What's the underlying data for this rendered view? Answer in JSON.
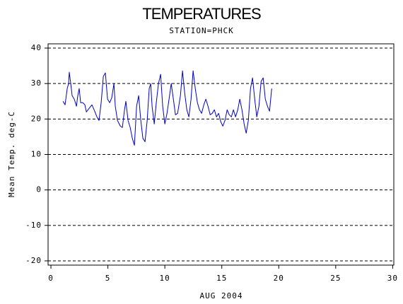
{
  "chart_data": {
    "type": "line",
    "title": "TEMPERATURES",
    "subtitle": "STATION=PHCK",
    "x_label": "AUG 2004",
    "y_label": "Mean Temp. deg-C",
    "color": "#0000cc",
    "grid": true,
    "xlim": [
      -0.25,
      30.1
    ],
    "ylim": [
      -21.2,
      41.2
    ],
    "xticks": [
      0,
      5,
      10,
      15,
      20,
      25,
      30
    ],
    "yticks": [
      -20,
      -10,
      0,
      10,
      20,
      30,
      40
    ],
    "x": [
      1.06,
      1.24,
      1.43,
      1.55,
      1.61,
      1.74,
      1.86,
      2.05,
      2.24,
      2.36,
      2.48,
      2.61,
      2.8,
      2.98,
      3.11,
      3.35,
      3.6,
      3.79,
      4.04,
      4.22,
      4.41,
      4.6,
      4.78,
      4.97,
      5.16,
      5.34,
      5.53,
      5.65,
      5.84,
      6.09,
      6.27,
      6.46,
      6.58,
      6.77,
      6.96,
      7.14,
      7.33,
      7.52,
      7.7,
      7.89,
      8.07,
      8.26,
      8.45,
      8.63,
      8.76,
      8.88,
      9.07,
      9.25,
      9.44,
      9.63,
      9.81,
      10.0,
      10.19,
      10.37,
      10.56,
      10.75,
      10.93,
      11.12,
      11.37,
      11.55,
      11.74,
      11.93,
      12.11,
      12.3,
      12.48,
      12.67,
      12.86,
      13.04,
      13.23,
      13.42,
      13.6,
      13.79,
      13.98,
      14.16,
      14.35,
      14.53,
      14.72,
      14.91,
      15.09,
      15.28,
      15.47,
      15.65,
      15.84,
      16.02,
      16.21,
      16.4,
      16.58,
      16.77,
      16.96,
      17.14,
      17.33,
      17.52,
      17.7,
      17.89,
      18.07,
      18.26,
      18.45,
      18.63,
      18.82,
      19.01,
      19.19,
      19.38
    ],
    "values": [
      25,
      24,
      28.6,
      30,
      33.2,
      30,
      26.6,
      25.6,
      23.6,
      26.6,
      28.6,
      24.6,
      24.6,
      24,
      22,
      23,
      24,
      22.6,
      20.6,
      19.6,
      24.6,
      32,
      33,
      25.6,
      24.6,
      26,
      30,
      23.6,
      19.6,
      18,
      17.6,
      22.6,
      25,
      19.6,
      17.6,
      14.6,
      12.6,
      23.6,
      26.6,
      19.6,
      14.6,
      13.6,
      19.6,
      28.6,
      30,
      23.6,
      18.6,
      24.6,
      30,
      32.6,
      23.6,
      18.6,
      21.6,
      25.6,
      30,
      25.6,
      21.2,
      21.6,
      26.6,
      33.6,
      27.4,
      22.6,
      20.6,
      25.6,
      33.6,
      28.6,
      24.6,
      22.6,
      21.6,
      24,
      25.6,
      23.6,
      21.2,
      21.6,
      22.6,
      20.6,
      21.6,
      19.2,
      18,
      19.6,
      22.6,
      21.2,
      20.6,
      22.6,
      20.6,
      22.6,
      25.6,
      22.6,
      18.6,
      16,
      19.6,
      28.6,
      31.6,
      25.6,
      20.6,
      23.6,
      30.6,
      31.6,
      25.6,
      23.6,
      22.2,
      28.6
    ]
  }
}
